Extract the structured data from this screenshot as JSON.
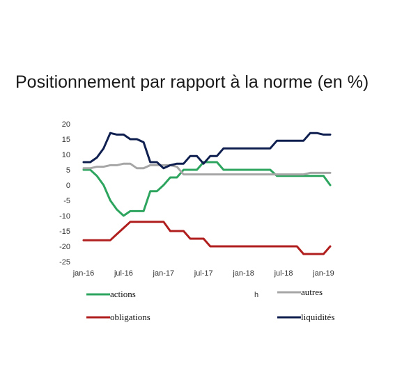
{
  "chart_data": {
    "type": "line",
    "title": "Positionnement par rapport à la norme (en %)",
    "xlabel": "",
    "ylabel": "",
    "x_tick_labels": [
      "jan-16",
      "jul-16",
      "jan-17",
      "jul-17",
      "jan-18",
      "jul-18",
      "jan-19"
    ],
    "y_ticks": [
      20,
      15,
      10,
      5,
      0,
      -5,
      -10,
      -15,
      -20,
      -25
    ],
    "ylim": [
      -25,
      20
    ],
    "x_months": [
      0,
      37
    ],
    "grid": false,
    "legend_position": "bottom",
    "series": [
      {
        "name": "actions",
        "color": "#2ea55f",
        "points": [
          [
            0,
            5
          ],
          [
            1,
            5
          ],
          [
            2,
            3
          ],
          [
            3,
            0
          ],
          [
            4,
            -5
          ],
          [
            5,
            -8
          ],
          [
            6,
            -10
          ],
          [
            7,
            -8.5
          ],
          [
            8,
            -8.5
          ],
          [
            9,
            -8.5
          ],
          [
            10,
            -2
          ],
          [
            11,
            -2
          ],
          [
            12,
            0
          ],
          [
            13,
            2.5
          ],
          [
            14,
            2.5
          ],
          [
            15,
            5
          ],
          [
            16,
            5
          ],
          [
            17,
            5
          ],
          [
            18,
            7.5
          ],
          [
            19,
            7.5
          ],
          [
            20,
            7.5
          ],
          [
            21,
            5
          ],
          [
            22,
            5
          ],
          [
            23,
            5
          ],
          [
            24,
            5
          ],
          [
            25,
            5
          ],
          [
            26,
            5
          ],
          [
            27,
            5
          ],
          [
            28,
            5
          ],
          [
            29,
            3
          ],
          [
            30,
            3
          ],
          [
            31,
            3
          ],
          [
            32,
            3
          ],
          [
            33,
            3
          ],
          [
            34,
            3
          ],
          [
            35,
            3
          ],
          [
            36,
            3
          ],
          [
            37,
            0
          ]
        ]
      },
      {
        "name": "autres",
        "color": "#a6a6a6",
        "points": [
          [
            0,
            5.5
          ],
          [
            1,
            5.5
          ],
          [
            2,
            6
          ],
          [
            3,
            6
          ],
          [
            4,
            6.5
          ],
          [
            5,
            6.5
          ],
          [
            6,
            7
          ],
          [
            7,
            7
          ],
          [
            8,
            5.5
          ],
          [
            9,
            5.5
          ],
          [
            10,
            6.5
          ],
          [
            11,
            6.5
          ],
          [
            12,
            6.5
          ],
          [
            13,
            6.5
          ],
          [
            14,
            6
          ],
          [
            15,
            3.5
          ],
          [
            16,
            3.5
          ],
          [
            17,
            3.5
          ],
          [
            18,
            3.5
          ],
          [
            19,
            3.5
          ],
          [
            20,
            3.5
          ],
          [
            21,
            3.5
          ],
          [
            22,
            3.5
          ],
          [
            23,
            3.5
          ],
          [
            24,
            3.5
          ],
          [
            25,
            3.5
          ],
          [
            26,
            3.5
          ],
          [
            27,
            3.5
          ],
          [
            28,
            3.5
          ],
          [
            29,
            3.5
          ],
          [
            30,
            3.5
          ],
          [
            31,
            3.5
          ],
          [
            32,
            3.5
          ],
          [
            33,
            3.5
          ],
          [
            34,
            4
          ],
          [
            35,
            4
          ],
          [
            36,
            4
          ],
          [
            37,
            4
          ]
        ]
      },
      {
        "name": "obligations",
        "color": "#b01e1e",
        "points": [
          [
            0,
            -18
          ],
          [
            1,
            -18
          ],
          [
            2,
            -18
          ],
          [
            3,
            -18
          ],
          [
            4,
            -18
          ],
          [
            5,
            -16
          ],
          [
            6,
            -14
          ],
          [
            7,
            -12
          ],
          [
            8,
            -12
          ],
          [
            9,
            -12
          ],
          [
            10,
            -12
          ],
          [
            11,
            -12
          ],
          [
            12,
            -12
          ],
          [
            13,
            -15
          ],
          [
            14,
            -15
          ],
          [
            15,
            -15
          ],
          [
            16,
            -17.5
          ],
          [
            17,
            -17.5
          ],
          [
            18,
            -17.5
          ],
          [
            19,
            -20
          ],
          [
            20,
            -20
          ],
          [
            21,
            -20
          ],
          [
            22,
            -20
          ],
          [
            23,
            -20
          ],
          [
            24,
            -20
          ],
          [
            25,
            -20
          ],
          [
            26,
            -20
          ],
          [
            27,
            -20
          ],
          [
            28,
            -20
          ],
          [
            29,
            -20
          ],
          [
            30,
            -20
          ],
          [
            31,
            -20
          ],
          [
            32,
            -20
          ],
          [
            33,
            -22.5
          ],
          [
            34,
            -22.5
          ],
          [
            35,
            -22.5
          ],
          [
            36,
            -22.5
          ],
          [
            37,
            -20
          ]
        ]
      },
      {
        "name": "liquidités",
        "color": "#0f1f4f",
        "points": [
          [
            0,
            7.5
          ],
          [
            1,
            7.5
          ],
          [
            2,
            9
          ],
          [
            3,
            12
          ],
          [
            4,
            17
          ],
          [
            5,
            16.5
          ],
          [
            6,
            16.5
          ],
          [
            7,
            15
          ],
          [
            8,
            15
          ],
          [
            9,
            14
          ],
          [
            10,
            7.5
          ],
          [
            11,
            7.5
          ],
          [
            12,
            5.5
          ],
          [
            13,
            6.5
          ],
          [
            14,
            7
          ],
          [
            15,
            7
          ],
          [
            16,
            9.5
          ],
          [
            17,
            9.5
          ],
          [
            18,
            7
          ],
          [
            19,
            9.5
          ],
          [
            20,
            9.5
          ],
          [
            21,
            12
          ],
          [
            22,
            12
          ],
          [
            23,
            12
          ],
          [
            24,
            12
          ],
          [
            25,
            12
          ],
          [
            26,
            12
          ],
          [
            27,
            12
          ],
          [
            28,
            12
          ],
          [
            29,
            14.5
          ],
          [
            30,
            14.5
          ],
          [
            31,
            14.5
          ],
          [
            32,
            14.5
          ],
          [
            33,
            14.5
          ],
          [
            34,
            17
          ],
          [
            35,
            17
          ],
          [
            36,
            16.5
          ],
          [
            37,
            16.5
          ]
        ]
      }
    ],
    "legend_mark_chars": [
      "h"
    ]
  }
}
